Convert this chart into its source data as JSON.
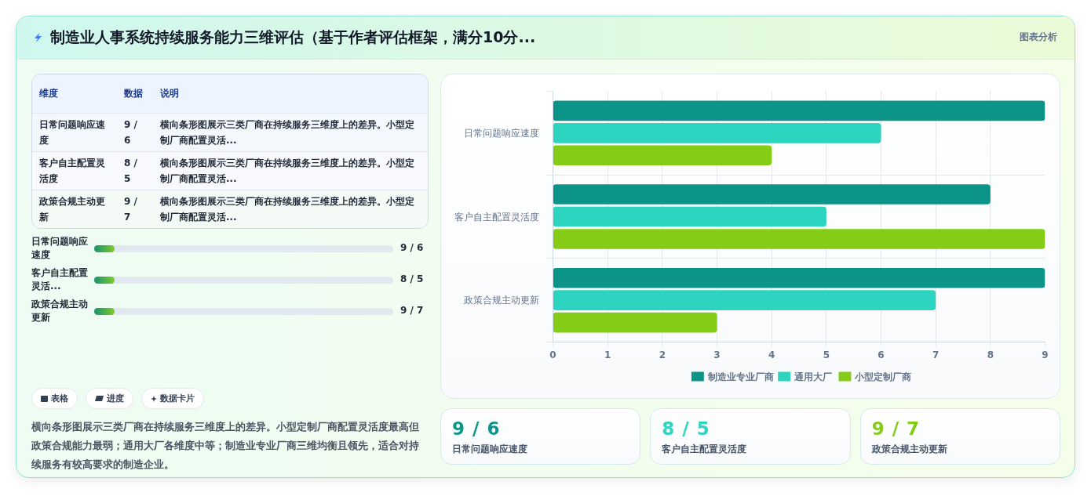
{
  "chart_data": [
    {
      "type": "other",
      "title": "制造业人事系统持续服务能力三维评估（基于作者评估框架，满分10分...",
      "annotations": [
        "图表分析"
      ]
    },
    {
      "type": "other",
      "categories": [
        "维度",
        "数据",
        "说明"
      ],
      "annotations": [
        "日常问题响应速度",
        "9 / 6",
        "横向条形图展示三类厂商在持续服务三维度上的差异。小型定制厂商配置灵活...",
        "客户自主配置灵活度",
        "8 / 5",
        "横向条形图展示三类厂商在持续服务三维度上的差异。小型定制厂商配置灵活...",
        "政策合规主动更新",
        "9 / 7",
        "横向条形图展示三类厂商在持续服务三维度上的差异。小型定制厂商配置灵活..."
      ]
    },
    {
      "type": "other",
      "categories": [
        "日常问题响应速度",
        "客户自主配置灵活...",
        "政策合规主动更新"
      ],
      "value_labels": [
        "9 / 6",
        "8 / 5",
        "9 / 7"
      ]
    },
    {
      "type": "other",
      "categories": [
        "表格",
        "进度",
        "数据卡片"
      ],
      "annotations": [
        "横向条形图展示三类厂商在持续服务三维度上的差异。小型定制厂商配置灵活度最高但政策合规能力最弱；通用大厂各维度中等；制造业专业厂商三维均衡且领先，适合对持续服务有较高要求的制造企业。"
      ]
    },
    {
      "type": "bar",
      "orientation": "horizontal",
      "categories": [
        "日常问题响应速度",
        "客户自主配置灵活度",
        "政策合规主动更新"
      ],
      "series": [
        {
          "name": "制造业专业厂商",
          "color": "#0d9488",
          "values": [
            9,
            8,
            9
          ]
        },
        {
          "name": "通用大厂",
          "color": "#2dd4bf",
          "values": [
            6,
            5,
            7
          ]
        },
        {
          "name": "小型定制厂商",
          "color": "#84cc16",
          "values": [
            4,
            9,
            3
          ]
        }
      ],
      "xlim": [
        0,
        9
      ],
      "xticks": [
        0,
        1,
        2,
        3,
        4,
        5,
        6,
        7,
        8,
        9
      ],
      "grid": true,
      "legend": "bottom"
    },
    {
      "type": "other",
      "categories": [
        "日常问题响应速度",
        "客户自主配置灵活度",
        "政策合规主动更新"
      ],
      "value_labels": [
        "9 / 6",
        "8 / 5",
        "9 / 7"
      ]
    }
  ]
}
